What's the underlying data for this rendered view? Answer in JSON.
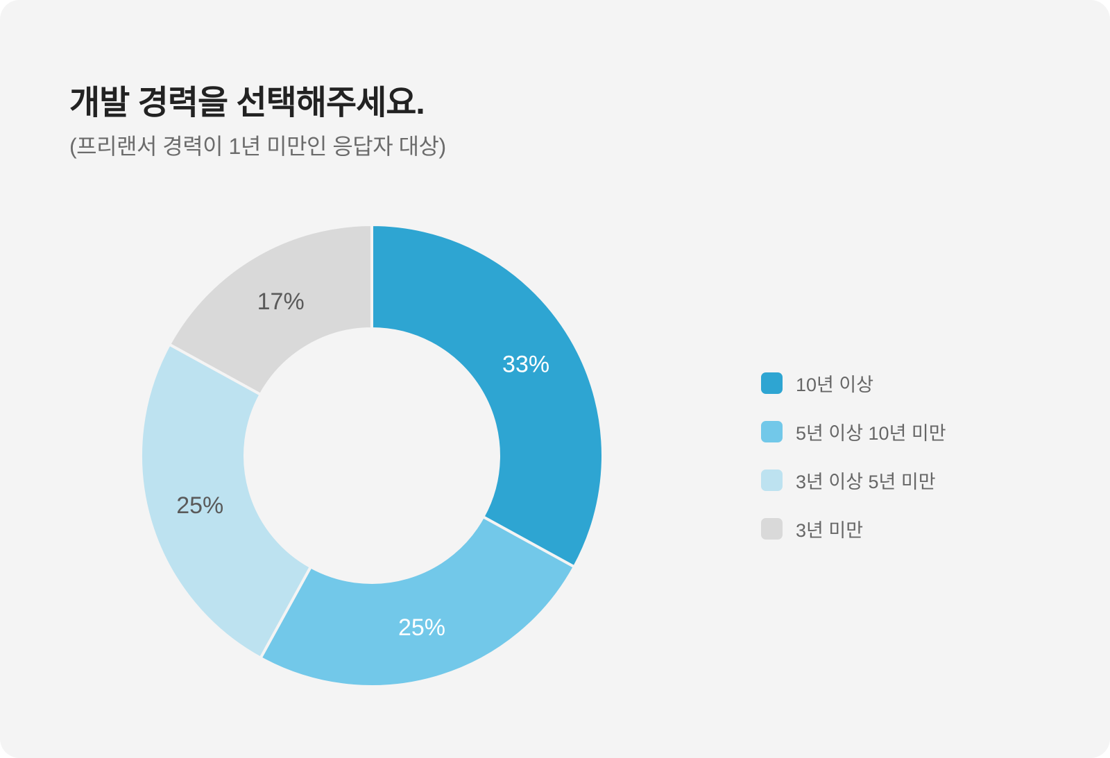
{
  "title": "개발 경력을 선택해주세요.",
  "subtitle": "(프리랜서 경력이 1년 미만인 응답자 대상)",
  "chart_data": {
    "type": "pie",
    "title": "개발 경력을 선택해주세요.",
    "subtitle": "(프리랜서 경력이 1년 미만인 응답자 대상)",
    "donut": true,
    "categories": [
      "10년 이상",
      "5년 이상 10년 미만",
      "3년 이상 5년 미만",
      "3년 미만"
    ],
    "values": [
      33,
      25,
      25,
      17
    ],
    "labels": [
      "33%",
      "25%",
      "25%",
      "17%"
    ],
    "colors": [
      "#2ea5d2",
      "#72c8e9",
      "#bde2f0",
      "#d9d9d9"
    ],
    "label_colors": [
      "#ffffff",
      "#ffffff",
      "#5a5a5a",
      "#5a5a5a"
    ],
    "start": "12 o'clock",
    "direction": "clockwise",
    "legend": "right"
  }
}
